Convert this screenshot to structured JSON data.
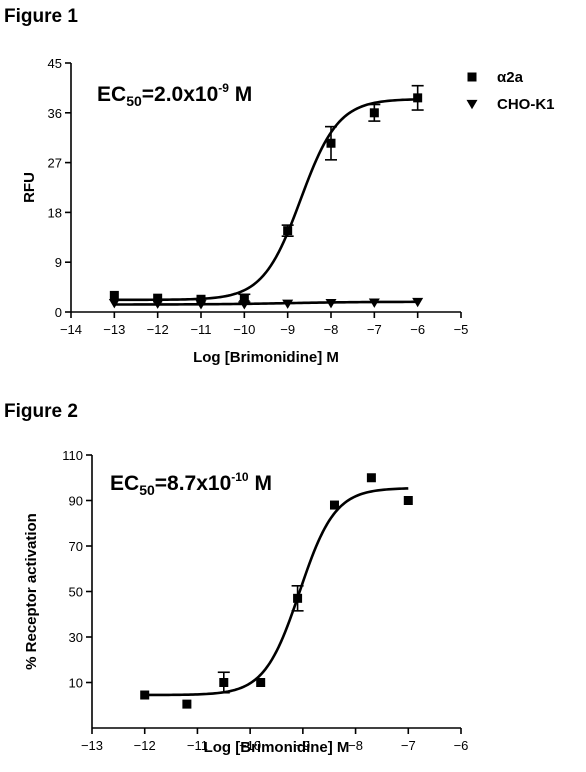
{
  "chart_data": [
    {
      "type": "scatter",
      "title": "Figure 1",
      "xlabel": "Log [Brimonidine] M",
      "ylabel": "RFU",
      "xlim": [
        -14,
        -5
      ],
      "ylim": [
        0,
        45
      ],
      "xticks": [
        -14,
        -13,
        -12,
        -11,
        -10,
        -9,
        -8,
        -7,
        -6,
        -5
      ],
      "yticks": [
        0,
        9,
        18,
        27,
        36,
        45
      ],
      "annotation": {
        "prefix": "EC",
        "sub": "50",
        "mid": "=2.0x10",
        "sup": "-9",
        "suffix": " M"
      },
      "legend_position": "top-right",
      "series": [
        {
          "name": "α2a",
          "marker": "square",
          "x": [
            -13,
            -12,
            -11,
            -10,
            -9,
            -8,
            -7,
            -6
          ],
          "y": [
            3.0,
            2.5,
            2.3,
            2.5,
            14.7,
            30.5,
            36.0,
            38.7
          ],
          "err": [
            0,
            0,
            0,
            0.7,
            1.0,
            3.0,
            1.5,
            2.2
          ],
          "fit": {
            "bottom": 2.2,
            "top": 38.5,
            "logEC50": -8.7,
            "hill": 1.0
          }
        },
        {
          "name": "CHO-K1",
          "marker": "triangle-down",
          "x": [
            -13,
            -12,
            -11,
            -10,
            -9,
            -8,
            -7,
            -6
          ],
          "y": [
            1.6,
            1.5,
            1.4,
            1.4,
            1.5,
            1.6,
            1.7,
            1.8
          ],
          "err": [
            0,
            0,
            0,
            0,
            0,
            0,
            0,
            0
          ],
          "fit": {
            "bottom": 1.35,
            "top": 1.85,
            "logEC50": -9.0,
            "hill": 0.5
          }
        }
      ]
    },
    {
      "type": "scatter",
      "title": "Figure 2",
      "xlabel": "Log [Brimonidine] M",
      "ylabel": "% Receptor activation",
      "xlim": [
        -13,
        -6
      ],
      "ylim": [
        -10,
        110
      ],
      "xticks": [
        -13,
        -12,
        -11,
        -10,
        -9,
        -8,
        -7,
        -6
      ],
      "yticks": [
        10,
        30,
        50,
        70,
        90,
        110
      ],
      "annotation": {
        "prefix": "EC",
        "sub": "50",
        "mid": "=8.7x10",
        "sup": "-10",
        "suffix": " M"
      },
      "series": [
        {
          "marker": "square",
          "x": [
            -12.0,
            -11.2,
            -10.5,
            -9.8,
            -9.1,
            -8.4,
            -7.7,
            -7.0
          ],
          "y": [
            4.5,
            0.5,
            10.0,
            10.0,
            47.0,
            88.0,
            100.0,
            90.0
          ],
          "err": [
            0,
            0,
            4.5,
            0,
            5.5,
            0,
            0,
            0
          ],
          "fit": {
            "bottom": 4.5,
            "top": 95.5,
            "logEC50": -9.06,
            "hill": 1.3
          }
        }
      ]
    }
  ]
}
